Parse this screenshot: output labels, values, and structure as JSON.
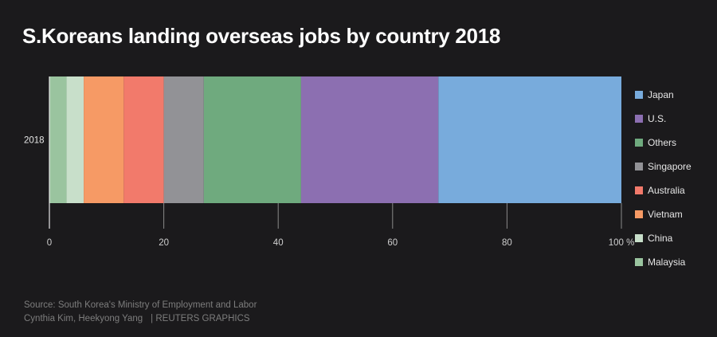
{
  "title": "S.Koreans landing overseas jobs by country 2018",
  "chart_data": {
    "type": "bar",
    "orientation": "horizontal",
    "stacked": true,
    "normalized": true,
    "categories": [
      "2018"
    ],
    "xlim": [
      0,
      100
    ],
    "x_ticks": [
      "0",
      "20",
      "40",
      "60",
      "80",
      "100 %"
    ],
    "grid": true,
    "legend_position": "right",
    "series": [
      {
        "name": "Malaysia",
        "values": [
          3
        ],
        "color": "#9ac49f"
      },
      {
        "name": "China",
        "values": [
          3
        ],
        "color": "#c8dfca"
      },
      {
        "name": "Vietnam",
        "values": [
          7
        ],
        "color": "#f69a65"
      },
      {
        "name": "Australia",
        "values": [
          7
        ],
        "color": "#f27a6b"
      },
      {
        "name": "Singapore",
        "values": [
          7
        ],
        "color": "#929296"
      },
      {
        "name": "Others",
        "values": [
          17
        ],
        "color": "#6faa7e"
      },
      {
        "name": "U.S.",
        "values": [
          24
        ],
        "color": "#8c6fb1"
      },
      {
        "name": "Japan",
        "values": [
          32
        ],
        "color": "#78abdc"
      }
    ],
    "legend_order": [
      "Japan",
      "U.S.",
      "Others",
      "Singapore",
      "Australia",
      "Vietnam",
      "China",
      "Malaysia"
    ]
  },
  "footer": {
    "source": "Source: South Korea's Ministry of Employment and Labor",
    "credit": "Cynthia Kim, Heekyong Yang",
    "brand": "| REUTERS GRAPHICS"
  }
}
